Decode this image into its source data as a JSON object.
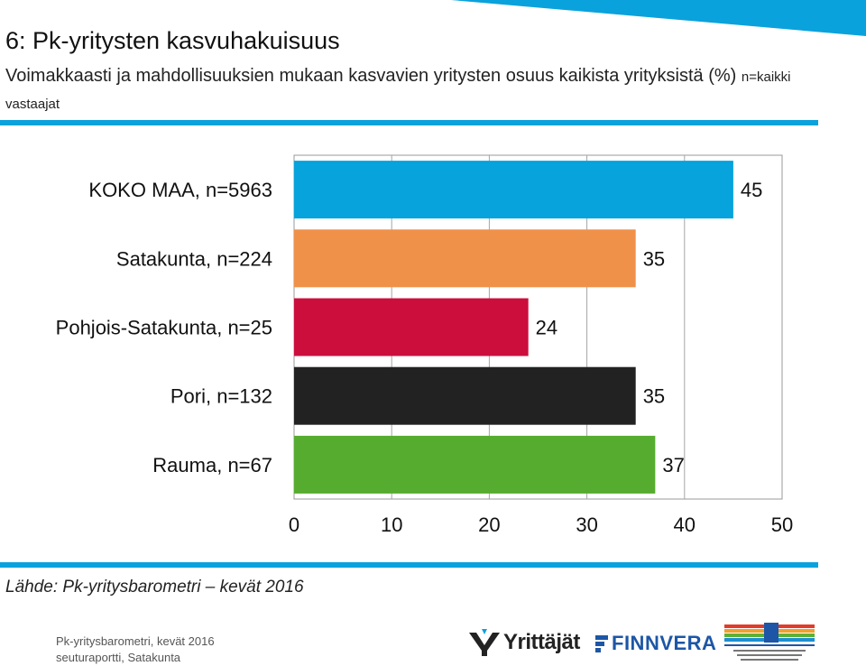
{
  "header": {
    "title": "6: Pk-yritysten kasvuhakuisuus",
    "subtitle": "Voimakkaasti ja mahdollisuuksien mukaan kasvavien yritysten osuus kaikista yrityksistä (%)",
    "subtitle_note": "n=kaikki vastaajat"
  },
  "colors": {
    "accent": "#0aa2dc",
    "koko_maa": "#06a3dc",
    "satakunta": "#f0914a",
    "pohjois_satakunta": "#cc0e3c",
    "pori": "#222222",
    "rauma": "#56ac2e"
  },
  "chart_data": {
    "type": "bar",
    "orientation": "horizontal",
    "categories": [
      "KOKO MAA, n=5963",
      "Satakunta, n=224",
      "Pohjois-Satakunta, n=25",
      "Pori, n=132",
      "Rauma, n=67"
    ],
    "values": [
      45,
      35,
      24,
      35,
      37
    ],
    "data_labels": [
      "45",
      "35",
      "24",
      "35",
      "37"
    ],
    "bar_colors": [
      "#06a3dc",
      "#f0914a",
      "#cc0e3c",
      "#222222",
      "#56ac2e"
    ],
    "xlim": [
      0,
      50
    ],
    "xticks": [
      0,
      10,
      20,
      30,
      40,
      50
    ],
    "grid": true,
    "title": "",
    "xlabel": "",
    "ylabel": ""
  },
  "source": "Lähde: Pk-yritysbarometri – kevät 2016",
  "footer": {
    "line1": "Pk-yritysbarometri, kevät 2016",
    "line2": "seuturaportti, Satakunta"
  },
  "logos": {
    "yrittajat": "Yrittäjät",
    "finnvera": "FINNVERA",
    "tem_icon": "ministry-of-employment-logo"
  }
}
